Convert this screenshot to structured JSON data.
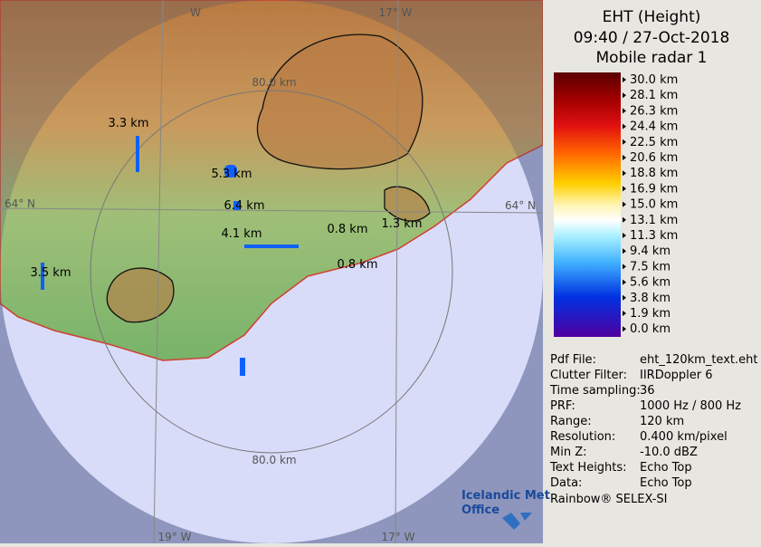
{
  "header": {
    "title": "EHT (Height)",
    "time": "09:40 / 27-Oct-2018",
    "radar": "Mobile radar 1"
  },
  "scale": {
    "labels": [
      "30.0 km",
      "28.1 km",
      "26.3 km",
      "24.4 km",
      "22.5 km",
      "20.6 km",
      "18.8 km",
      "16.9 km",
      "15.0 km",
      "13.1 km",
      "11.3 km",
      "9.4 km",
      "7.5 km",
      "5.6 km",
      "3.8 km",
      "1.9 km",
      "0.0 km"
    ]
  },
  "info": {
    "rows": [
      [
        "Pdf File:",
        "eht_120km_text.eht"
      ],
      [
        "Clutter Filter:",
        "IIRDoppler 6"
      ],
      [
        "Time sampling:",
        "36"
      ],
      [
        "PRF:",
        "1000 Hz / 800 Hz"
      ],
      [
        "Range:",
        "120 km"
      ],
      [
        "Resolution:",
        "0.400 km/pixel"
      ],
      [
        "Min Z:",
        "-10.0 dBZ"
      ],
      [
        "Text Heights:",
        "Echo Top"
      ],
      [
        "Data:",
        "Echo Top"
      ]
    ]
  },
  "map": {
    "range_labels": [
      "80.0 km",
      "80.0 km"
    ],
    "graticule": [
      "W",
      "17° W",
      "64° N",
      "64° N",
      "19° W",
      "17° W"
    ],
    "heights": [
      "3.3 km",
      "5.3 km",
      "6.4 km",
      "4.1 km",
      "3.5 km",
      "0.8 km",
      "1.3 km",
      "0.8 km"
    ]
  },
  "footer": {
    "logo": [
      "Icelandic Met",
      "Office"
    ],
    "credit": "Rainbow® SELEX-SI"
  }
}
